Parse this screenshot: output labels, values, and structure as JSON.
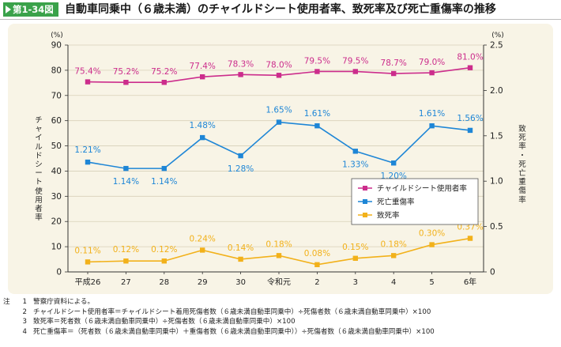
{
  "header": {
    "figure_label": "第1-34図",
    "title": "自動車同乗中（６歳未満）のチャイルドシート使用者率、致死率及び死亡重傷率の推移"
  },
  "chart_data": {
    "type": "line",
    "categories": [
      "平成26",
      "27",
      "28",
      "29",
      "30",
      "令和元",
      "2",
      "3",
      "4",
      "5",
      "6年"
    ],
    "left_axis": {
      "unit": "(%)",
      "label": "チャイルドシート使用者率",
      "min": 0,
      "max": 90,
      "ticks": [
        0,
        10,
        20,
        30,
        40,
        50,
        60,
        70,
        80,
        90
      ]
    },
    "right_axis": {
      "unit": "(%)",
      "label": "致死率・死亡重傷率",
      "min": 0,
      "max": 2.5,
      "ticks": [
        "0",
        "0.5",
        "1.0",
        "1.5",
        "2.0",
        "2.5"
      ]
    },
    "series": [
      {
        "name": "チャイルドシート使用者率",
        "axis": "left",
        "color": "#cc2d8c",
        "values": [
          75.4,
          75.2,
          75.2,
          77.4,
          78.3,
          78.0,
          79.5,
          79.5,
          78.7,
          79.0,
          81.0
        ],
        "labels": [
          "75.4%",
          "75.2%",
          "75.2%",
          "77.4%",
          "78.3%",
          "78.0%",
          "79.5%",
          "79.5%",
          "78.7%",
          "79.0%",
          "81.0%"
        ]
      },
      {
        "name": "死亡重傷率",
        "axis": "right",
        "color": "#1e86d6",
        "values": [
          1.21,
          1.14,
          1.14,
          1.48,
          1.28,
          1.65,
          1.61,
          1.33,
          1.2,
          1.61,
          1.56
        ],
        "labels": [
          "1.21%",
          "1.14%",
          "1.14%",
          "1.48%",
          "1.28%",
          "1.65%",
          "1.61%",
          "1.33%",
          "1.20%",
          "1.61%",
          "1.56%"
        ]
      },
      {
        "name": "致死率",
        "axis": "right",
        "color": "#f2b11a",
        "values": [
          0.11,
          0.12,
          0.12,
          0.24,
          0.14,
          0.18,
          0.08,
          0.15,
          0.18,
          0.3,
          0.37
        ],
        "labels": [
          "0.11%",
          "0.12%",
          "0.12%",
          "0.24%",
          "0.14%",
          "0.18%",
          "0.08%",
          "0.15%",
          "0.18%",
          "0.30%",
          "0.37%"
        ]
      }
    ],
    "legend_position": "right-middle"
  },
  "notes": {
    "lead": "注",
    "items": [
      {
        "num": "1",
        "text": "警察庁資料による。"
      },
      {
        "num": "2",
        "text": "チャイルドシート使用者率＝チャイルドシート着用死傷者数（６歳未満自動車同乗中）÷死傷者数（６歳未満自動車同乗中）×100"
      },
      {
        "num": "3",
        "text": "致死率＝死者数（６歳未満自動車同乗中）÷死傷者数（６歳未満自動車同乗中）×100"
      },
      {
        "num": "4",
        "text": "死亡重傷率＝（死者数（６歳未満自動車同乗中）＋重傷者数（６歳未満自動車同乗中））÷死傷者数（６歳未満自動車同乗中）×100"
      }
    ]
  }
}
